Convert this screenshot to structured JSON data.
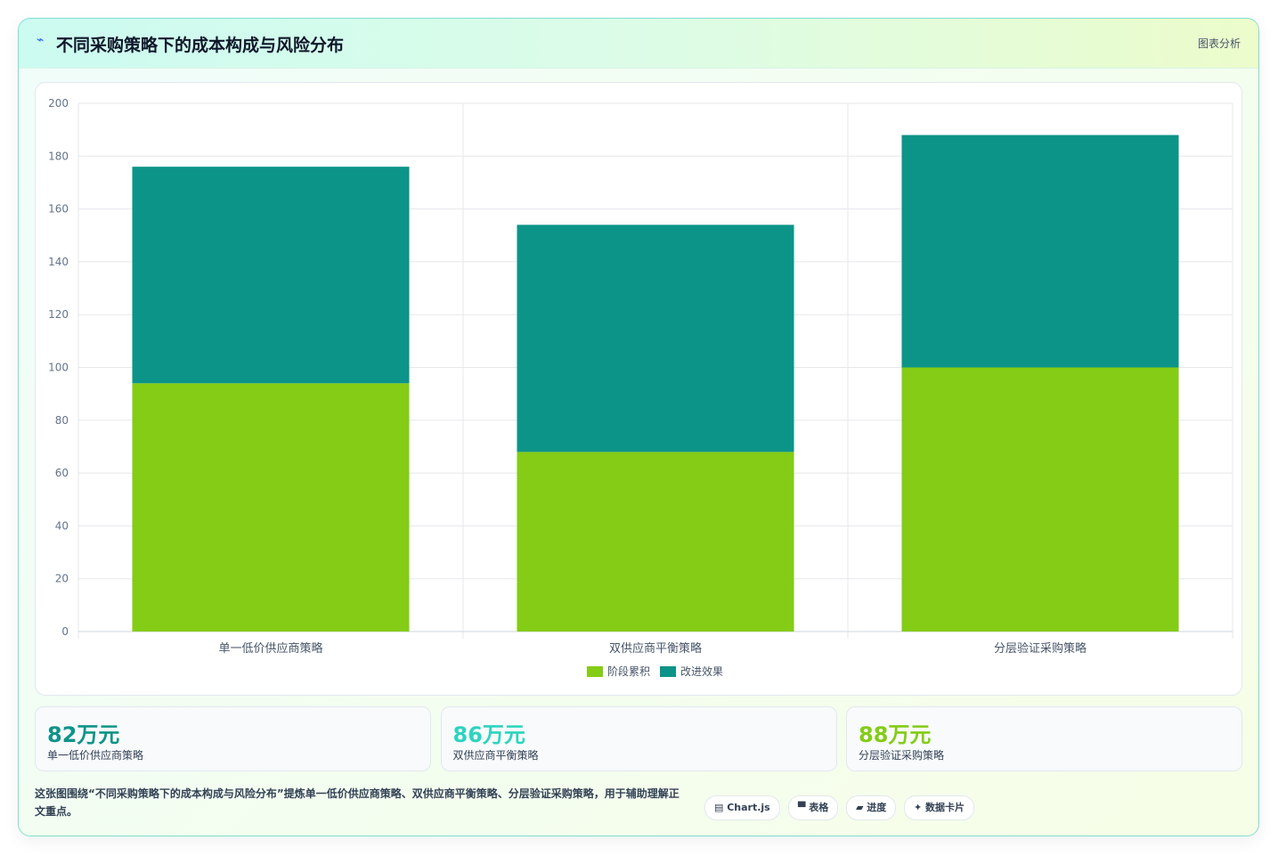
{
  "header": {
    "icon": "⌁",
    "title": "不同采购策略下的成本构成与风险分布",
    "tag": "图表分析"
  },
  "chart_data": {
    "type": "bar",
    "stacked": true,
    "categories": [
      "单一低价供应商策略",
      "双供应商平衡策略",
      "分层验证采购策略"
    ],
    "series": [
      {
        "name": "阶段累积",
        "color": "#84cc16",
        "values": [
          94,
          68,
          100
        ]
      },
      {
        "name": "改进效果",
        "color": "#0d9488",
        "values": [
          82,
          86,
          88
        ]
      }
    ],
    "ylim": [
      0,
      200
    ],
    "yticks": [
      0,
      20,
      40,
      60,
      80,
      100,
      120,
      140,
      160,
      180,
      200
    ],
    "grid": true,
    "legend": "bottom"
  },
  "cards": [
    {
      "value": "82万元",
      "label": "单一低价供应商策略",
      "color": "#0d9488"
    },
    {
      "value": "86万元",
      "label": "双供应商平衡策略",
      "color": "#2dd4bf"
    },
    {
      "value": "88万元",
      "label": "分层验证采购策略",
      "color": "#84cc16"
    }
  ],
  "note": "这张图围绕“不同采购策略下的成本构成与风险分布”提炼单一低价供应商策略、双供应商平衡策略、分层验证采购策略，用于辅助理解正文重点。",
  "buttons": [
    "▤ Chart.js",
    "▀ 表格",
    "▰ 进度",
    "✦ 数据卡片"
  ]
}
